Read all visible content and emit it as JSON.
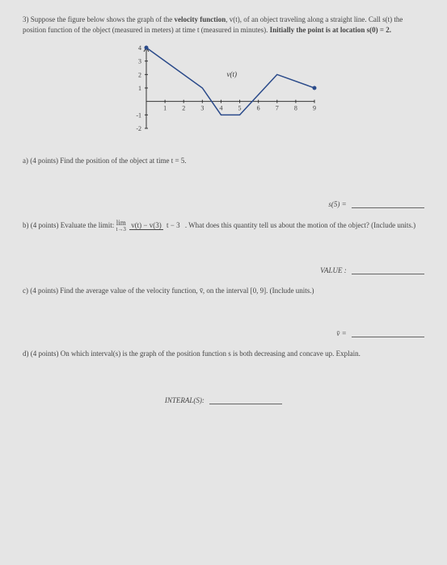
{
  "question": {
    "number": "3)",
    "intro_a": "Suppose the figure below shows the graph of the ",
    "intro_b": "velocity function",
    "intro_c": ", v(t), of an object traveling along a straight line. Call s(t) the position function of the object (measured in meters) at time t (measured in minutes). ",
    "intro_d": "Initially the point is at location s(0) = 2."
  },
  "chart": {
    "type": "line",
    "label": "v(t)",
    "xlim": [
      0,
      9
    ],
    "ylim": [
      -2,
      4
    ],
    "xtick_labels": [
      "1",
      "2",
      "3",
      "4",
      "5",
      "6",
      "7",
      "8",
      "9"
    ],
    "ytick_labels": [
      "-2",
      "-1",
      "1",
      "2",
      "3",
      "4"
    ],
    "points": [
      {
        "x": 0,
        "y": 4
      },
      {
        "x": 3,
        "y": 1
      },
      {
        "x": 4,
        "y": -1
      },
      {
        "x": 5,
        "y": -1
      },
      {
        "x": 7,
        "y": 2
      },
      {
        "x": 9,
        "y": 1
      }
    ],
    "marked_points": [
      {
        "x": 0,
        "y": 4
      },
      {
        "x": 9,
        "y": 1
      }
    ],
    "line_color": "#2a4a8a",
    "axis_color": "#333333",
    "background": "#e5e5e5",
    "label_fontsize": 9
  },
  "parts": {
    "a": {
      "label": "a) (4 points) Find the position of the object at time t = 5.",
      "answer_label": "s(5) ="
    },
    "b": {
      "label_pre": "b) (4 points) Evaluate the limit: ",
      "lim_top": "lim",
      "lim_under": "t→3",
      "frac_num": "v(t) − v(3)",
      "frac_den": "t − 3",
      "label_post": ". What does this quantity tell us about the motion of the object? (Include units.)",
      "answer_label": "VALUE :"
    },
    "c": {
      "label": "c) (4 points) Find the average value of the velocity function, v̄, on the interval [0, 9]. (Include units.)",
      "answer_label": "v̄ ="
    },
    "d": {
      "label": "d) (4 points) On which interval(s) is the graph of the position function s is both decreasing and concave up. Explain.",
      "answer_label": "INTERAL(S):"
    }
  }
}
